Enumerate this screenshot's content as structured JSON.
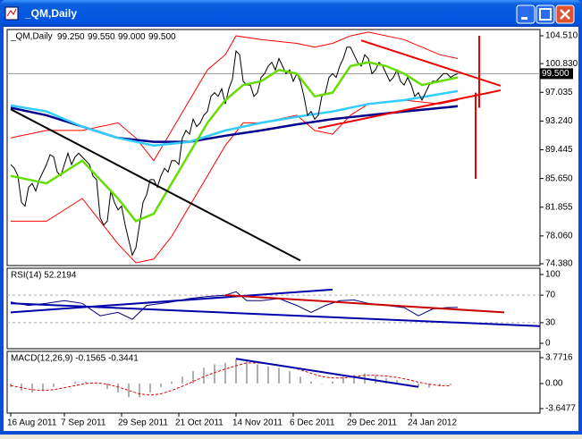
{
  "window": {
    "title": "_QM,Daily"
  },
  "chart_data": [
    {
      "type": "line",
      "title": "_QM,Daily",
      "ohlc": [
        {
          "value": 99.25,
          "label": "99.250"
        },
        {
          "value": 99.55,
          "label": "99.550"
        },
        {
          "value": 99.0,
          "label": "99.000"
        },
        {
          "value": 99.5,
          "label": "99.500"
        }
      ],
      "last_price": {
        "value": 99.5,
        "label": "99.500"
      },
      "ylim": [
        74.38,
        104.51
      ],
      "yticks": [
        {
          "value": 104.51,
          "label": "104.510"
        },
        {
          "value": 100.83,
          "label": "100.830"
        },
        {
          "value": 97.035,
          "label": "97.035"
        },
        {
          "value": 93.24,
          "label": "93.240"
        },
        {
          "value": 89.445,
          "label": "89.445"
        },
        {
          "value": 85.65,
          "label": "85.650"
        },
        {
          "value": 81.855,
          "label": "81.855"
        },
        {
          "value": 78.06,
          "label": "78.060"
        },
        {
          "value": 74.38,
          "label": "74.380"
        }
      ],
      "series": [
        {
          "color": "#ff0000",
          "width": 1,
          "x": [
            0,
            10,
            20,
            30,
            35,
            40,
            45,
            50,
            55,
            60,
            63,
            70,
            80,
            85,
            90,
            95,
            100,
            110,
            120,
            125
          ],
          "values": [
            91,
            92,
            92,
            93,
            91,
            88,
            92,
            96,
            100,
            102,
            104.5,
            104,
            103.5,
            103,
            103.5,
            104.5,
            105,
            104,
            102,
            101.5
          ]
        },
        {
          "color": "#ff0000",
          "width": 1,
          "x": [
            0,
            10,
            20,
            30,
            35,
            40,
            45,
            50,
            55,
            60,
            65,
            70,
            80,
            85,
            90,
            95,
            100,
            110,
            120,
            125
          ],
          "values": [
            80,
            80,
            83,
            77,
            74.5,
            75,
            78,
            82,
            86,
            90,
            93,
            93,
            94,
            92,
            91.5,
            94,
            95.5,
            96,
            95.5,
            96
          ]
        },
        {
          "color": "#00008b",
          "width": 2.5,
          "x": [
            0,
            10,
            20,
            30,
            40,
            50,
            60,
            70,
            80,
            90,
            100,
            110,
            125
          ],
          "values": [
            95,
            94,
            92.5,
            91,
            90.5,
            90.5,
            91.3,
            92,
            92.8,
            93.5,
            94,
            94.5,
            95.2
          ]
        },
        {
          "color": "#33ccff",
          "width": 2.5,
          "x": [
            0,
            10,
            20,
            30,
            40,
            50,
            60,
            70,
            80,
            90,
            100,
            110,
            125
          ],
          "values": [
            95.3,
            94.5,
            92.5,
            91,
            90,
            90.5,
            92,
            93,
            93.8,
            94.5,
            95.5,
            96,
            97.2
          ]
        },
        {
          "color": "#000000",
          "width": 1,
          "values": [
            87.5,
            87,
            86,
            82.5,
            82,
            84.5,
            85,
            84,
            85.5,
            86.5,
            87.5,
            88.8,
            88.5,
            86.5,
            86,
            87.5,
            89,
            87.5,
            88.5,
            89,
            88.5,
            88,
            87.5,
            86,
            85.5,
            80.5,
            79.5,
            80,
            84,
            82.5,
            81.5,
            82,
            79.5,
            77.5,
            75.5,
            76.5,
            79.5,
            82.5,
            83.5,
            85.5,
            85.5,
            84.5,
            86,
            87,
            86.5,
            88,
            88,
            87.5,
            91,
            92,
            91.5,
            93.5,
            92.5,
            93,
            94,
            94.5,
            96.5,
            97,
            96.5,
            97.5,
            95.5,
            97.5,
            98.8,
            102.5,
            102,
            98.5,
            98,
            98,
            96.5,
            97,
            99,
            99.5,
            100.5,
            101,
            100,
            101.5,
            100.5,
            99.5,
            100,
            98.5,
            99.5,
            98.5,
            96.5,
            94,
            94.5,
            93.5,
            94,
            96.5,
            97,
            99,
            99.5,
            99,
            100.5,
            101.5,
            103,
            103,
            102,
            101,
            100.5,
            102,
            101.5,
            99.5,
            100,
            101,
            100.5,
            99.5,
            98.5,
            99,
            100,
            98.5,
            98,
            99,
            98,
            96.5,
            97,
            96,
            97,
            98,
            98.5,
            98.5,
            99,
            99.5,
            99.5,
            99,
            99.3,
            99.5
          ]
        },
        {
          "color": "#66dd00",
          "width": 2.5,
          "x": [
            0,
            10,
            20,
            30,
            35,
            40,
            45,
            50,
            55,
            60,
            65,
            70,
            75,
            80,
            85,
            90,
            95,
            100,
            105,
            110,
            115,
            120,
            125
          ],
          "values": [
            86,
            85,
            88,
            83,
            80,
            81,
            85,
            89,
            93,
            96,
            98,
            98.5,
            100,
            99.5,
            96.5,
            97,
            100.5,
            101,
            100.5,
            99.5,
            98,
            98.5,
            99
          ]
        }
      ],
      "trendlines": [
        {
          "color": "#000000",
          "x": [
            0,
            81
          ],
          "values": [
            94.8,
            74.8
          ]
        },
        {
          "color": "#ee0000",
          "x": [
            98,
            137
          ],
          "values": [
            103.9,
            97.9
          ]
        },
        {
          "color": "#ee0000",
          "x": [
            86,
            137
          ],
          "values": [
            92.3,
            97.3
          ]
        },
        {
          "color": "#ee0000",
          "x": [
            131,
            131
          ],
          "values": [
            104.5,
            95
          ]
        },
        {
          "color": "#ee0000",
          "x": [
            130,
            130
          ],
          "values": [
            97,
            85.6
          ]
        }
      ]
    },
    {
      "type": "line",
      "title": "RSI(14) 52.2194",
      "ylim": [
        0,
        100
      ],
      "yticks": [
        100,
        70,
        30,
        0
      ],
      "levels": [
        70,
        30
      ],
      "series": [
        {
          "color": "#000080",
          "width": 1,
          "x": [
            0,
            5,
            10,
            15,
            20,
            25,
            30,
            34,
            38,
            45,
            50,
            55,
            60,
            63,
            66,
            70,
            75,
            80,
            84,
            88,
            92,
            96,
            100,
            105,
            110,
            114,
            118,
            122,
            125
          ],
          "values": [
            60,
            55,
            58,
            62,
            58,
            40,
            45,
            35,
            55,
            60,
            65,
            68,
            70,
            75,
            62,
            62,
            65,
            55,
            45,
            55,
            62,
            63,
            58,
            55,
            52,
            40,
            50,
            52,
            52.2
          ]
        }
      ],
      "trendlines": [
        {
          "color": "#0000aa",
          "x": [
            0,
            90
          ],
          "values": [
            45,
            78
          ]
        },
        {
          "color": "#0000aa",
          "x": [
            0,
            148
          ],
          "values": [
            58,
            25
          ]
        },
        {
          "color": "#cc0000",
          "x": [
            60,
            138
          ],
          "values": [
            70,
            45
          ]
        }
      ]
    },
    {
      "type": "bar",
      "title": "MACD(12,26,9) -0.1565 -0.3441",
      "ylim": [
        -3.6477,
        3.7716
      ],
      "yticks": [
        3.7716,
        {
          "value": 0,
          "label": "0.00"
        },
        -3.6477
      ],
      "xticks": [
        {
          "value": 0,
          "label": "16 Aug 2011"
        },
        {
          "value": 15,
          "label": "7 Sep 2011"
        },
        {
          "value": 31,
          "label": "29 Sep 2011"
        },
        {
          "value": 47,
          "label": "21 Oct 2011"
        },
        {
          "value": 63,
          "label": "14 Nov 2011"
        },
        {
          "value": 79,
          "label": "6 Dec 2011"
        },
        {
          "value": 95,
          "label": "29 Dec 2011"
        },
        {
          "value": 112,
          "label": "24 Jan 2012"
        }
      ],
      "x": [
        0,
        3,
        6,
        9,
        12,
        15,
        18,
        21,
        24,
        27,
        30,
        33,
        36,
        39,
        42,
        45,
        48,
        51,
        54,
        57,
        60,
        63,
        66,
        69,
        72,
        75,
        78,
        81,
        84,
        87,
        90,
        93,
        96,
        99,
        102,
        105,
        108,
        111,
        114,
        117,
        120,
        123
      ],
      "values": [
        -0.5,
        -1,
        -1.3,
        -1,
        -0.5,
        0,
        0.3,
        0.3,
        0,
        -0.8,
        -1.3,
        -2,
        -2,
        -1.3,
        -0.5,
        0.3,
        1,
        1.8,
        2.3,
        2.8,
        3,
        3.6,
        3.3,
        2.8,
        2.5,
        2.3,
        1.8,
        1,
        0.3,
        0,
        0.3,
        1,
        1.3,
        1.5,
        1.2,
        0.8,
        0.5,
        0,
        -0.5,
        -0.6,
        -0.4,
        -0.2
      ],
      "color": "#b0b0b0",
      "signal": {
        "color": "#dd0000",
        "values": [
          -0.3,
          -0.6,
          -0.9,
          -1,
          -0.9,
          -0.6,
          -0.3,
          0,
          0.1,
          -0.1,
          -0.5,
          -1,
          -1.5,
          -1.7,
          -1.5,
          -1,
          -0.4,
          0.3,
          1,
          1.6,
          2.1,
          2.6,
          3,
          3,
          2.9,
          2.7,
          2.4,
          2,
          1.5,
          1,
          0.8,
          0.8,
          1,
          1.2,
          1.2,
          1.1,
          0.9,
          0.6,
          0.2,
          -0.1,
          -0.3,
          -0.34
        ]
      },
      "trendlines": [
        {
          "color": "#0000aa",
          "x": [
            63,
            114
          ],
          "values": [
            3.6,
            -0.5
          ]
        }
      ]
    }
  ]
}
